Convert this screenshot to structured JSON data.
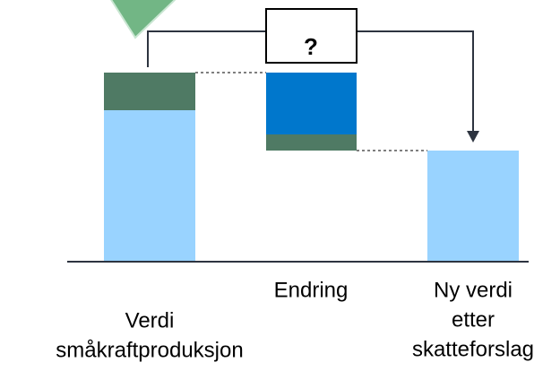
{
  "box": "?",
  "columns": [
    {
      "label": [
        "Verdi",
        "småkraftproduksjon"
      ]
    },
    {
      "label": [
        "Endring"
      ]
    },
    {
      "label": [
        "Ny verdi",
        "etter",
        "skatteforslag"
      ]
    }
  ]
}
